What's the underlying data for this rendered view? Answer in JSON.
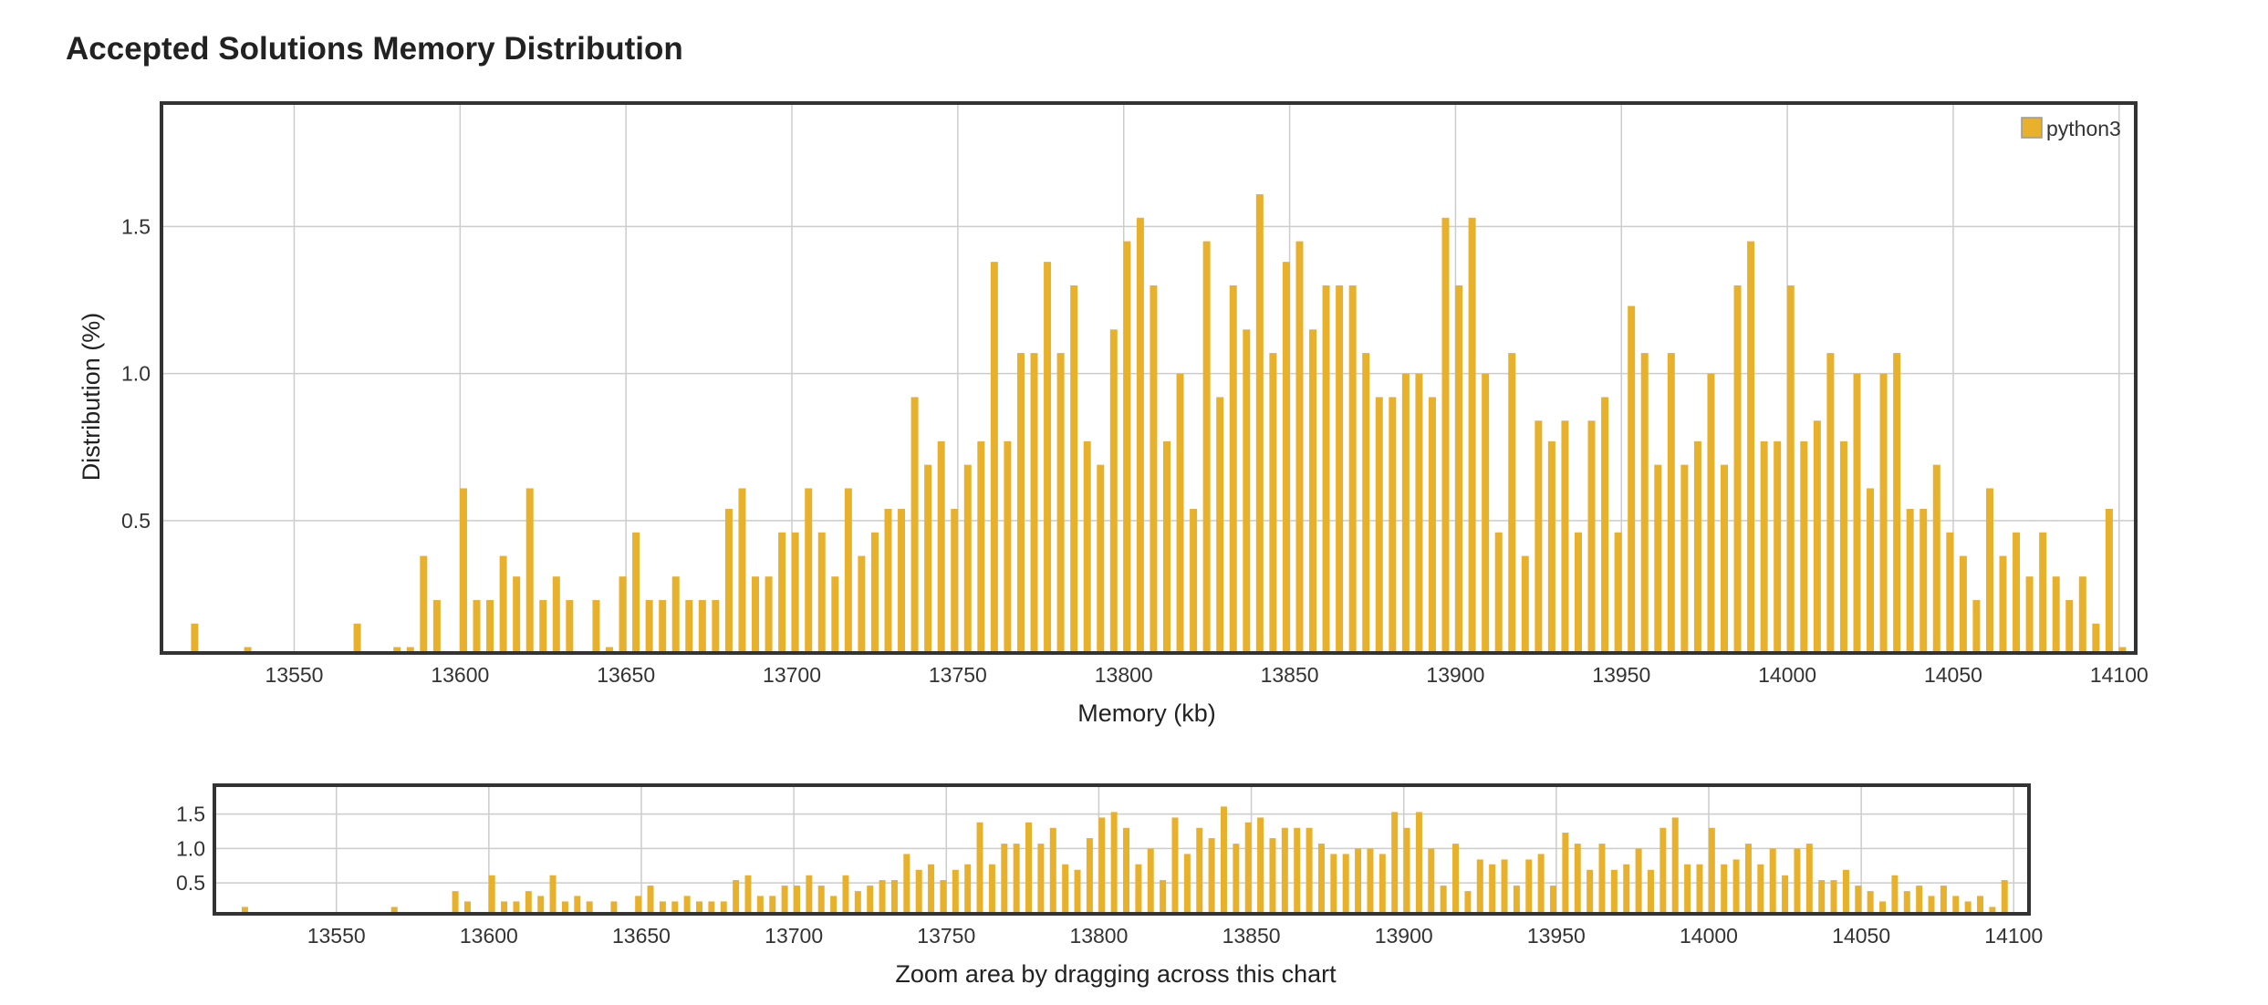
{
  "title": "Accepted Solutions Memory Distribution",
  "legend_label": "python3",
  "zoom_hint": "Zoom area by dragging across this chart",
  "colors": {
    "bar": "#e8b12c",
    "frame": "#333333",
    "grid": "#cccccc"
  },
  "chart_data": {
    "type": "bar",
    "title": "Accepted Solutions Memory Distribution",
    "xlabel": "Memory (kb)",
    "ylabel": "Distribution (%)",
    "xlim": [
      13510,
      14105
    ],
    "ylim": [
      0.05,
      1.92
    ],
    "x_ticks": [
      13550,
      13600,
      13650,
      13700,
      13750,
      13800,
      13850,
      13900,
      13950,
      14000,
      14050,
      14100
    ],
    "y_ticks": [
      0.5,
      1.0,
      1.5
    ],
    "y_tick_labels": [
      "0.5",
      "1.0",
      "1.5"
    ],
    "grid": true,
    "legend_position": "top-right",
    "series": [
      {
        "name": "python3",
        "x": [
          13520,
          13536,
          13569,
          13581,
          13585,
          13589,
          13593,
          13601,
          13605,
          13609,
          13613,
          13617,
          13621,
          13625,
          13629,
          13633,
          13641,
          13645,
          13649,
          13653,
          13657,
          13661,
          13665,
          13669,
          13673,
          13677,
          13681,
          13685,
          13689,
          13693,
          13697,
          13701,
          13705,
          13709,
          13713,
          13717,
          13721,
          13725,
          13729,
          13733,
          13737,
          13741,
          13745,
          13749,
          13753,
          13757,
          13761,
          13765,
          13769,
          13773,
          13777,
          13781,
          13785,
          13789,
          13793,
          13797,
          13801,
          13805,
          13809,
          13813,
          13817,
          13821,
          13825,
          13829,
          13833,
          13837,
          13841,
          13845,
          13849,
          13853,
          13857,
          13861,
          13865,
          13869,
          13873,
          13877,
          13881,
          13885,
          13889,
          13893,
          13897,
          13901,
          13905,
          13909,
          13913,
          13917,
          13921,
          13925,
          13929,
          13933,
          13937,
          13941,
          13945,
          13949,
          13953,
          13957,
          13961,
          13965,
          13969,
          13973,
          13977,
          13981,
          13985,
          13989,
          13993,
          13997,
          14001,
          14005,
          14009,
          14013,
          14017,
          14021,
          14025,
          14029,
          14033,
          14037,
          14041,
          14045,
          14049,
          14053,
          14057,
          14061,
          14065,
          14069,
          14073,
          14077,
          14081,
          14085,
          14089,
          14093,
          14097,
          14101
        ],
        "values": [
          0.15,
          0.07,
          0.15,
          0.07,
          0.07,
          0.38,
          0.23,
          0.61,
          0.23,
          0.23,
          0.38,
          0.31,
          0.61,
          0.23,
          0.31,
          0.23,
          0.23,
          0.07,
          0.31,
          0.46,
          0.23,
          0.23,
          0.31,
          0.23,
          0.23,
          0.23,
          0.54,
          0.61,
          0.31,
          0.31,
          0.46,
          0.46,
          0.61,
          0.46,
          0.31,
          0.61,
          0.38,
          0.46,
          0.54,
          0.54,
          0.92,
          0.69,
          0.77,
          0.54,
          0.69,
          0.77,
          1.38,
          0.77,
          1.07,
          1.07,
          1.38,
          1.07,
          1.3,
          0.77,
          0.69,
          1.15,
          1.45,
          1.53,
          1.3,
          0.77,
          1.0,
          0.54,
          1.45,
          0.92,
          1.3,
          1.15,
          1.61,
          1.07,
          1.38,
          1.45,
          1.15,
          1.3,
          1.3,
          1.3,
          1.07,
          0.92,
          0.92,
          1.0,
          1.0,
          0.92,
          1.53,
          1.3,
          1.53,
          1.0,
          0.46,
          1.07,
          0.38,
          0.84,
          0.77,
          0.84,
          0.46,
          0.84,
          0.92,
          0.46,
          1.23,
          1.07,
          0.69,
          1.07,
          0.69,
          0.77,
          1.0,
          0.69,
          1.3,
          1.45,
          0.77,
          0.77,
          1.3,
          0.77,
          0.84,
          1.07,
          0.77,
          1.0,
          0.61,
          1.0,
          1.07,
          0.54,
          0.54,
          0.69,
          0.46,
          0.38,
          0.23,
          0.61,
          0.38,
          0.46,
          0.31,
          0.46,
          0.31,
          0.23,
          0.31,
          0.15,
          0.54,
          0.07
        ]
      }
    ]
  }
}
